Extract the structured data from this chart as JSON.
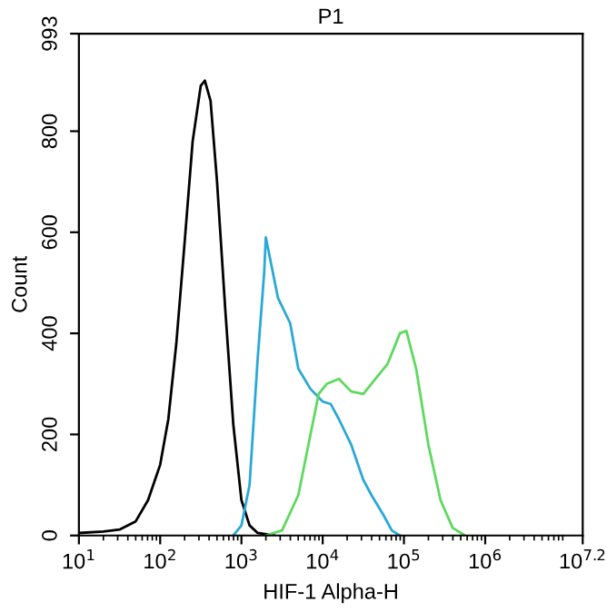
{
  "chart_data": {
    "type": "line",
    "title": "P1",
    "xlabel": "HIF-1 Alpha-H",
    "ylabel": "Count",
    "log": "x",
    "xlim": [
      10,
      15848932
    ],
    "xticks": [
      {
        "value": 10,
        "label": "10$^{1}$"
      },
      {
        "value": 100,
        "label": "10$^{2}$"
      },
      {
        "value": 1000,
        "label": "10$^{3}$"
      },
      {
        "value": 10000,
        "label": "10$^{4}$"
      },
      {
        "value": 100000,
        "label": "10$^{5}$"
      },
      {
        "value": 1000000,
        "label": "10$^{6}$"
      },
      {
        "value": 15848932,
        "label": "10$^{7.2}$"
      }
    ],
    "ylim": [
      0,
      993
    ],
    "yticks": [
      0,
      200,
      400,
      600,
      800,
      993
    ],
    "grid": false,
    "marker": "none",
    "line_style": "solid",
    "series": [
      {
        "color": "#000000",
        "x": [
          10,
          20,
          32,
          50,
          71,
          100,
          126,
          158,
          200,
          251,
          316,
          355,
          417,
          501,
          631,
          794,
          1000,
          1259,
          1585,
          2512
        ],
        "values": [
          5,
          8,
          12,
          28,
          70,
          140,
          230,
          380,
          580,
          780,
          890,
          900,
          860,
          700,
          450,
          220,
          70,
          20,
          5,
          0
        ]
      },
      {
        "color": "#2aa8d8",
        "x": [
          794,
          1000,
          1259,
          1585,
          1905,
          1995,
          2818,
          3981,
          5012,
          7079,
          10000,
          12589,
          15849,
          22387,
          31623,
          39811,
          56234,
          70795,
          89125
        ],
        "values": [
          0,
          20,
          100,
          350,
          520,
          590,
          470,
          420,
          330,
          290,
          265,
          260,
          230,
          180,
          110,
          80,
          40,
          10,
          0
        ]
      },
      {
        "color": "#5ed95e",
        "x": [
          1995,
          3162,
          5012,
          7079,
          8913,
          11220,
          15849,
          22387,
          31623,
          44668,
          63096,
          89125,
          107152,
          141254,
          199526,
          281838,
          398107,
          562341
        ],
        "values": [
          0,
          10,
          80,
          200,
          280,
          300,
          310,
          285,
          280,
          310,
          340,
          400,
          405,
          330,
          180,
          70,
          15,
          0
        ]
      }
    ]
  }
}
